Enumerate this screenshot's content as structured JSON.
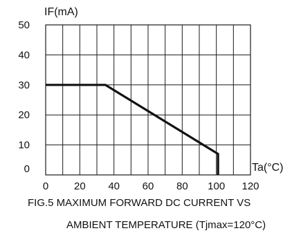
{
  "chart_data": {
    "type": "line",
    "ylabel": "IF(mA)",
    "xlabel": "Ta(°C)",
    "xlim": [
      0,
      120
    ],
    "ylim": [
      0,
      50
    ],
    "x_ticks": [
      "0",
      "20",
      "40",
      "60",
      "80",
      "100",
      "120"
    ],
    "y_ticks": [
      "0",
      "10",
      "20",
      "30",
      "40",
      "50"
    ],
    "grid": true,
    "series": [
      {
        "x": [
          0,
          35,
          101,
          101
        ],
        "y": [
          30,
          30,
          7,
          0
        ]
      }
    ],
    "caption_line1": "FIG.5 MAXIMUM FORWARD DC CURRENT VS",
    "caption_line2": "AMBIENT TEMPERATURE (Tjmax=120°C)"
  }
}
